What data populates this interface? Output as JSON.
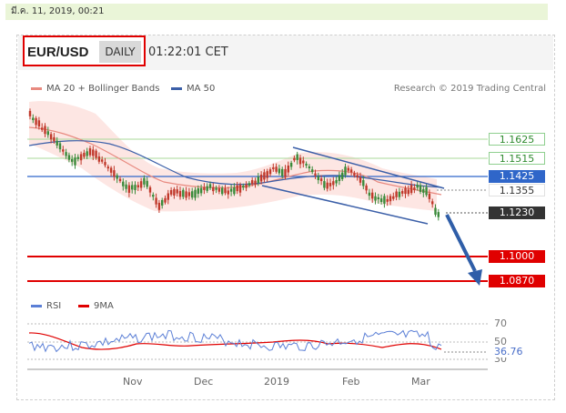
{
  "timestamp": "มี.ค. 11, 2019, 00:21",
  "header": {
    "symbol": "EUR/USD",
    "timeframe": "DAILY",
    "time": "01:22:01 CET"
  },
  "legend": {
    "ma20_label": "MA 20 + Bollinger Bands",
    "ma50_label": "MA 50",
    "credit": "Research © 2019 Trading Central"
  },
  "levels": [
    {
      "value": "1.1625",
      "style": "green"
    },
    {
      "value": "1.1515",
      "style": "green"
    },
    {
      "value": "1.1425",
      "style": "blue"
    },
    {
      "value": "1.1355",
      "style": "white"
    },
    {
      "value": "1.1230",
      "style": "black"
    },
    {
      "value": "1.1000",
      "style": "red"
    },
    {
      "value": "1.0870",
      "style": "red"
    }
  ],
  "rsi": {
    "rsi_label": "RSI",
    "ma_label": "9MA",
    "level_70": "70",
    "level_50": "50",
    "level_30": "30",
    "current": "36.76"
  },
  "x_axis": [
    "Nov",
    "Dec",
    "2019",
    "Feb",
    "Mar"
  ],
  "colors": {
    "up": "#3a8a3a",
    "down": "#c0392b",
    "ma20": "#e88a80",
    "ma50": "#3b5fa8",
    "band": "#fde3e0",
    "arrow": "#2f5ea8",
    "red_level": "#e00000",
    "blue_level": "#2f66c9"
  }
}
